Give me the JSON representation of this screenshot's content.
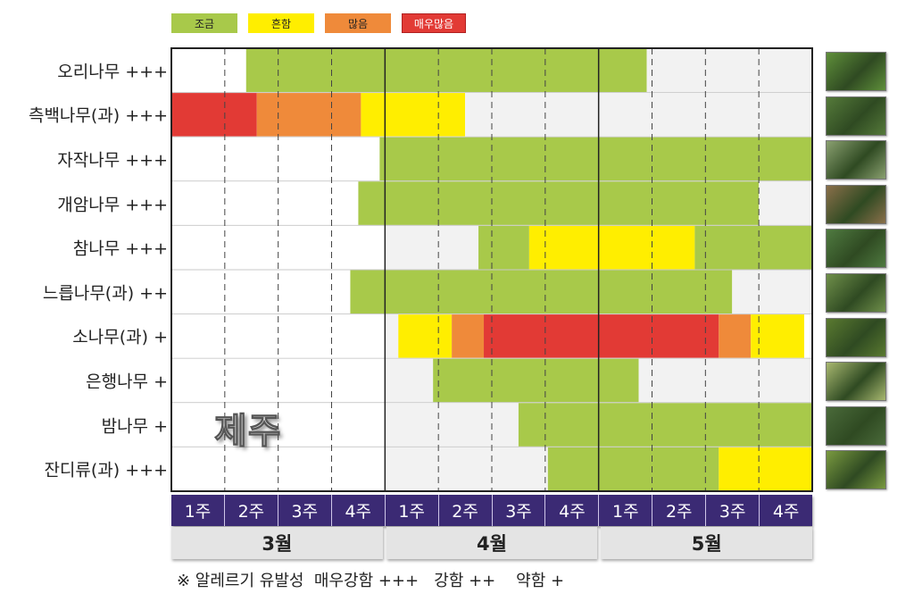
{
  "legend": [
    {
      "label": "조금",
      "color": "#a8c94a"
    },
    {
      "label": "흔함",
      "color": "#ffee00"
    },
    {
      "label": "많음",
      "color": "#ef8a3a"
    },
    {
      "label": "매우많음",
      "color": "#e23a35"
    }
  ],
  "region_label": "제주",
  "note": "※ 알레르기 유발성  매우강함 +++   강함 ++    약함 +",
  "chart_data": {
    "type": "heatmap",
    "x_unit": "week",
    "weeks": [
      "1주",
      "2주",
      "3주",
      "4주",
      "1주",
      "2주",
      "3주",
      "4주",
      "1주",
      "2주",
      "3주",
      "4주"
    ],
    "months": [
      "3월",
      "4월",
      "5월"
    ],
    "level_colors": {
      "none_white": "#ffffff",
      "none_gray": "#f2f2f2",
      "조금": "#a8c94a",
      "흔함": "#ffee00",
      "많음": "#ef8a3a",
      "매우많음": "#e23a35"
    },
    "rows": [
      {
        "label": "오리나무 +++",
        "segments": [
          {
            "start": 0,
            "end": 1.4,
            "level": "none_white"
          },
          {
            "start": 1.4,
            "end": 8.9,
            "level": "조금"
          },
          {
            "start": 8.9,
            "end": 12,
            "level": "none_gray"
          }
        ]
      },
      {
        "label": "측백나무(과) +++",
        "segments": [
          {
            "start": 0,
            "end": 1.6,
            "level": "매우많음"
          },
          {
            "start": 1.6,
            "end": 3.55,
            "level": "많음"
          },
          {
            "start": 3.55,
            "end": 5.5,
            "level": "흔함"
          },
          {
            "start": 5.5,
            "end": 12,
            "level": "none_gray"
          }
        ]
      },
      {
        "label": "자작나무 +++",
        "segments": [
          {
            "start": 0,
            "end": 3.9,
            "level": "none_white"
          },
          {
            "start": 3.9,
            "end": 12,
            "level": "조금"
          }
        ]
      },
      {
        "label": "개암나무 +++",
        "segments": [
          {
            "start": 0,
            "end": 3.5,
            "level": "none_white"
          },
          {
            "start": 3.5,
            "end": 11,
            "level": "조금"
          },
          {
            "start": 11,
            "end": 12,
            "level": "none_gray"
          }
        ]
      },
      {
        "label": "참나무 +++",
        "segments": [
          {
            "start": 0,
            "end": 4,
            "level": "none_white"
          },
          {
            "start": 4,
            "end": 5.75,
            "level": "none_gray"
          },
          {
            "start": 5.75,
            "end": 6.7,
            "level": "조금"
          },
          {
            "start": 6.7,
            "end": 9.8,
            "level": "흔함"
          },
          {
            "start": 9.8,
            "end": 12,
            "level": "조금"
          }
        ]
      },
      {
        "label": "느릅나무(과) ++",
        "segments": [
          {
            "start": 0,
            "end": 3.35,
            "level": "none_white"
          },
          {
            "start": 3.35,
            "end": 10.5,
            "level": "조금"
          },
          {
            "start": 10.5,
            "end": 12,
            "level": "none_gray"
          }
        ]
      },
      {
        "label": "소나무(과) +",
        "segments": [
          {
            "start": 0,
            "end": 4,
            "level": "none_white"
          },
          {
            "start": 4,
            "end": 4.25,
            "level": "none_gray"
          },
          {
            "start": 4.25,
            "end": 5.25,
            "level": "흔함"
          },
          {
            "start": 5.25,
            "end": 5.85,
            "level": "많음"
          },
          {
            "start": 5.85,
            "end": 10.25,
            "level": "매우많음"
          },
          {
            "start": 10.25,
            "end": 10.85,
            "level": "많음"
          },
          {
            "start": 10.85,
            "end": 11.85,
            "level": "흔함"
          },
          {
            "start": 11.85,
            "end": 12,
            "level": "none_white"
          }
        ]
      },
      {
        "label": "은행나무 +",
        "segments": [
          {
            "start": 0,
            "end": 4,
            "level": "none_white"
          },
          {
            "start": 4,
            "end": 4.9,
            "level": "none_gray"
          },
          {
            "start": 4.9,
            "end": 8.75,
            "level": "조금"
          },
          {
            "start": 8.75,
            "end": 12,
            "level": "none_gray"
          }
        ]
      },
      {
        "label": "밤나무 +",
        "segments": [
          {
            "start": 0,
            "end": 4,
            "level": "none_white"
          },
          {
            "start": 4,
            "end": 6.5,
            "level": "none_gray"
          },
          {
            "start": 6.5,
            "end": 12,
            "level": "조금"
          }
        ]
      },
      {
        "label": "잔디류(과) +++",
        "segments": [
          {
            "start": 0,
            "end": 4,
            "level": "none_white"
          },
          {
            "start": 4,
            "end": 7.05,
            "level": "none_gray"
          },
          {
            "start": 7.05,
            "end": 10.25,
            "level": "조금"
          },
          {
            "start": 10.25,
            "end": 12,
            "level": "흔함"
          }
        ]
      }
    ]
  },
  "thumbnails": [
    {
      "icon": "alder-leaves-photo",
      "color": "#5f8f3a"
    },
    {
      "icon": "cypress-branch-photo",
      "color": "#557a3a"
    },
    {
      "icon": "birch-trunks-photo",
      "color": "#8aa070"
    },
    {
      "icon": "hazel-catkins-photo",
      "color": "#8a6f4a"
    },
    {
      "icon": "oak-leaves-photo",
      "color": "#4f7a40"
    },
    {
      "icon": "elm-seeds-photo",
      "color": "#6f8f4a"
    },
    {
      "icon": "pine-cones-photo",
      "color": "#5a7a30"
    },
    {
      "icon": "ginkgo-leaves-photo",
      "color": "#a8b870"
    },
    {
      "icon": "chestnut-flowers-photo",
      "color": "#4a6a3a"
    },
    {
      "icon": "grass-photo",
      "color": "#7a9a40"
    }
  ]
}
